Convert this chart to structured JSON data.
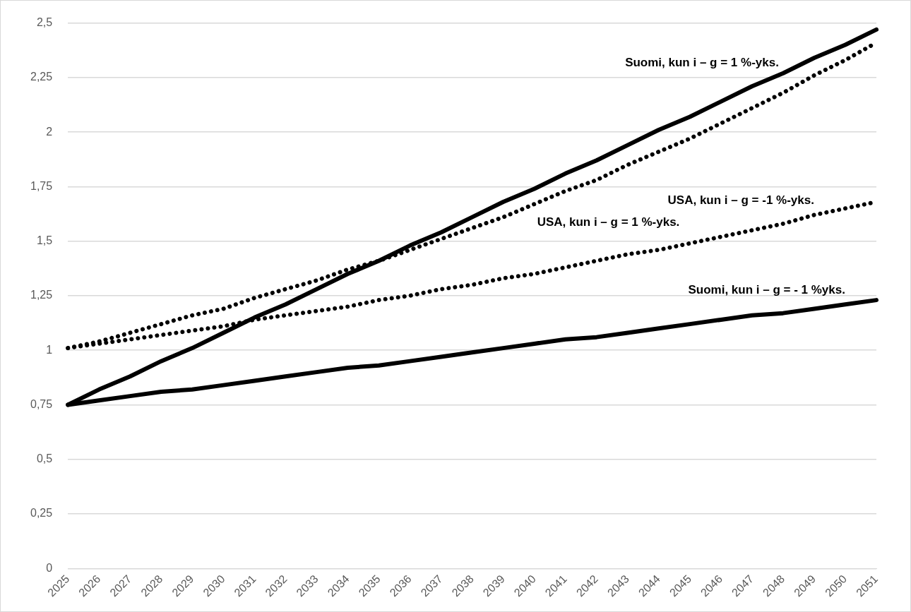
{
  "chart_data": {
    "type": "line",
    "categories": [
      "2025",
      "2026",
      "2027",
      "2028",
      "2029",
      "2030",
      "2031",
      "2032",
      "2033",
      "2034",
      "2035",
      "2036",
      "2037",
      "2038",
      "2039",
      "2040",
      "2041",
      "2042",
      "2043",
      "2044",
      "2045",
      "2046",
      "2047",
      "2048",
      "2049",
      "2050",
      "2051"
    ],
    "series": [
      {
        "name": "Suomi, kun i – g = 1 %-yks.",
        "color": "#000000",
        "line_style": "solid",
        "values": [
          0.75,
          0.82,
          0.88,
          0.95,
          1.01,
          1.08,
          1.15,
          1.21,
          1.28,
          1.35,
          1.41,
          1.48,
          1.54,
          1.61,
          1.68,
          1.74,
          1.81,
          1.87,
          1.94,
          2.01,
          2.07,
          2.14,
          2.21,
          2.27,
          2.34,
          2.4,
          2.47
        ]
      },
      {
        "name": "USA, kun i – g = 1 %-yks.",
        "color": "#000000",
        "line_style": "dotted",
        "values": [
          1.01,
          1.04,
          1.08,
          1.12,
          1.16,
          1.19,
          1.24,
          1.28,
          1.32,
          1.37,
          1.41,
          1.46,
          1.51,
          1.56,
          1.61,
          1.67,
          1.73,
          1.78,
          1.85,
          1.91,
          1.97,
          2.04,
          2.11,
          2.18,
          2.26,
          2.33,
          2.41
        ]
      },
      {
        "name": "USA, kun i – g = -1 %-yks.",
        "color": "#000000",
        "line_style": "dotted",
        "values": [
          1.01,
          1.03,
          1.05,
          1.07,
          1.09,
          1.11,
          1.14,
          1.16,
          1.18,
          1.2,
          1.23,
          1.25,
          1.28,
          1.3,
          1.33,
          1.35,
          1.38,
          1.41,
          1.44,
          1.46,
          1.49,
          1.52,
          1.55,
          1.58,
          1.62,
          1.65,
          1.68
        ]
      },
      {
        "name": "Suomi, kun i – g = - 1 %yks.",
        "color": "#000000",
        "line_style": "solid",
        "values": [
          0.75,
          0.77,
          0.79,
          0.81,
          0.82,
          0.84,
          0.86,
          0.88,
          0.9,
          0.92,
          0.93,
          0.95,
          0.97,
          0.99,
          1.01,
          1.03,
          1.05,
          1.06,
          1.08,
          1.1,
          1.12,
          1.14,
          1.16,
          1.17,
          1.19,
          1.21,
          1.23
        ]
      }
    ],
    "ylim": [
      0,
      2.5
    ],
    "yticks": [
      0,
      {
        "value": 0.25,
        "label": "0,25"
      },
      {
        "value": 0.5,
        "label": "0,5"
      },
      {
        "value": 0.75,
        "label": "0,75"
      },
      1,
      {
        "value": 1.25,
        "label": "1,25"
      },
      {
        "value": 1.5,
        "label": "1,5"
      },
      {
        "value": 1.75,
        "label": "1,75"
      },
      2,
      {
        "value": 2.25,
        "label": "2,25"
      },
      {
        "value": 2.5,
        "label": "2,5"
      }
    ],
    "grid": "y",
    "legend": false,
    "marker": "none"
  }
}
